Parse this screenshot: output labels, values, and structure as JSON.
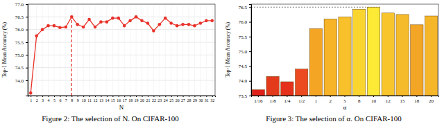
{
  "chart_data": [
    {
      "type": "line",
      "title": "Figure 2: The selection of N. On CIFAR-100",
      "x_label": "N",
      "y_label": "Top-1 Mean Accuracy (%)",
      "x": [
        1,
        2,
        3,
        4,
        5,
        6,
        7,
        8,
        9,
        10,
        11,
        12,
        13,
        14,
        15,
        16,
        17,
        18,
        19,
        20,
        21,
        22,
        23,
        24,
        25,
        26,
        27,
        28,
        29,
        30,
        31,
        32
      ],
      "values": [
        73.5,
        75.75,
        76.0,
        76.15,
        76.15,
        76.08,
        76.1,
        76.5,
        76.2,
        76.1,
        76.4,
        76.1,
        76.3,
        76.3,
        76.45,
        76.45,
        76.15,
        76.35,
        76.5,
        76.35,
        76.25,
        75.95,
        76.2,
        76.45,
        76.25,
        76.15,
        76.2,
        76.2,
        76.15,
        76.25,
        76.35,
        76.35
      ],
      "color": "#e8322a",
      "marker": "circle",
      "xlim": [
        0.5,
        32.5
      ],
      "xticks": [
        1,
        2,
        3,
        4,
        5,
        6,
        7,
        8,
        9,
        10,
        11,
        12,
        13,
        14,
        15,
        16,
        17,
        18,
        19,
        20,
        21,
        22,
        23,
        24,
        25,
        26,
        27,
        28,
        29,
        30,
        31,
        32
      ],
      "ylim": [
        73.4,
        77.0
      ],
      "yticks": [
        {
          "value": 74,
          "label": "74.0"
        },
        74.5,
        {
          "value": 75,
          "label": "75.0"
        },
        75.5,
        {
          "value": 76,
          "label": "76.0"
        },
        76.5,
        {
          "value": 77,
          "label": "77.0"
        }
      ],
      "grid": true
    },
    {
      "type": "bar",
      "title": "Figure 3: The selection of α. On CIFAR-100",
      "x_label": "α",
      "y_label": "Top-1 Mean Accuracy (%)",
      "categories": [
        "1/16",
        "1/8",
        "1/4",
        "1/2",
        "1",
        "2",
        "5",
        "8",
        "10",
        "12",
        "15",
        "18",
        "20"
      ],
      "values": [
        73.7,
        74.15,
        73.97,
        74.4,
        75.77,
        76.1,
        76.17,
        76.43,
        76.5,
        76.3,
        76.25,
        75.9,
        76.2
      ],
      "colors": [
        "#e0201a",
        "#e33a1c",
        "#e5301b",
        "#ec4a20",
        "#f5a524",
        "#f7b428",
        "#f8c02b",
        "#fad530",
        "#fcea36",
        "#f8c52c",
        "#f6bb2a",
        "#f3a526",
        "#f6b629"
      ],
      "ylim": [
        73.5,
        76.6
      ],
      "yticks": [
        73.5,
        {
          "value": 74,
          "label": "74.0"
        },
        74.5,
        {
          "value": 75,
          "label": "75.0"
        },
        75.5,
        {
          "value": 76,
          "label": "76.0"
        },
        76.5
      ],
      "grid": false
    }
  ]
}
